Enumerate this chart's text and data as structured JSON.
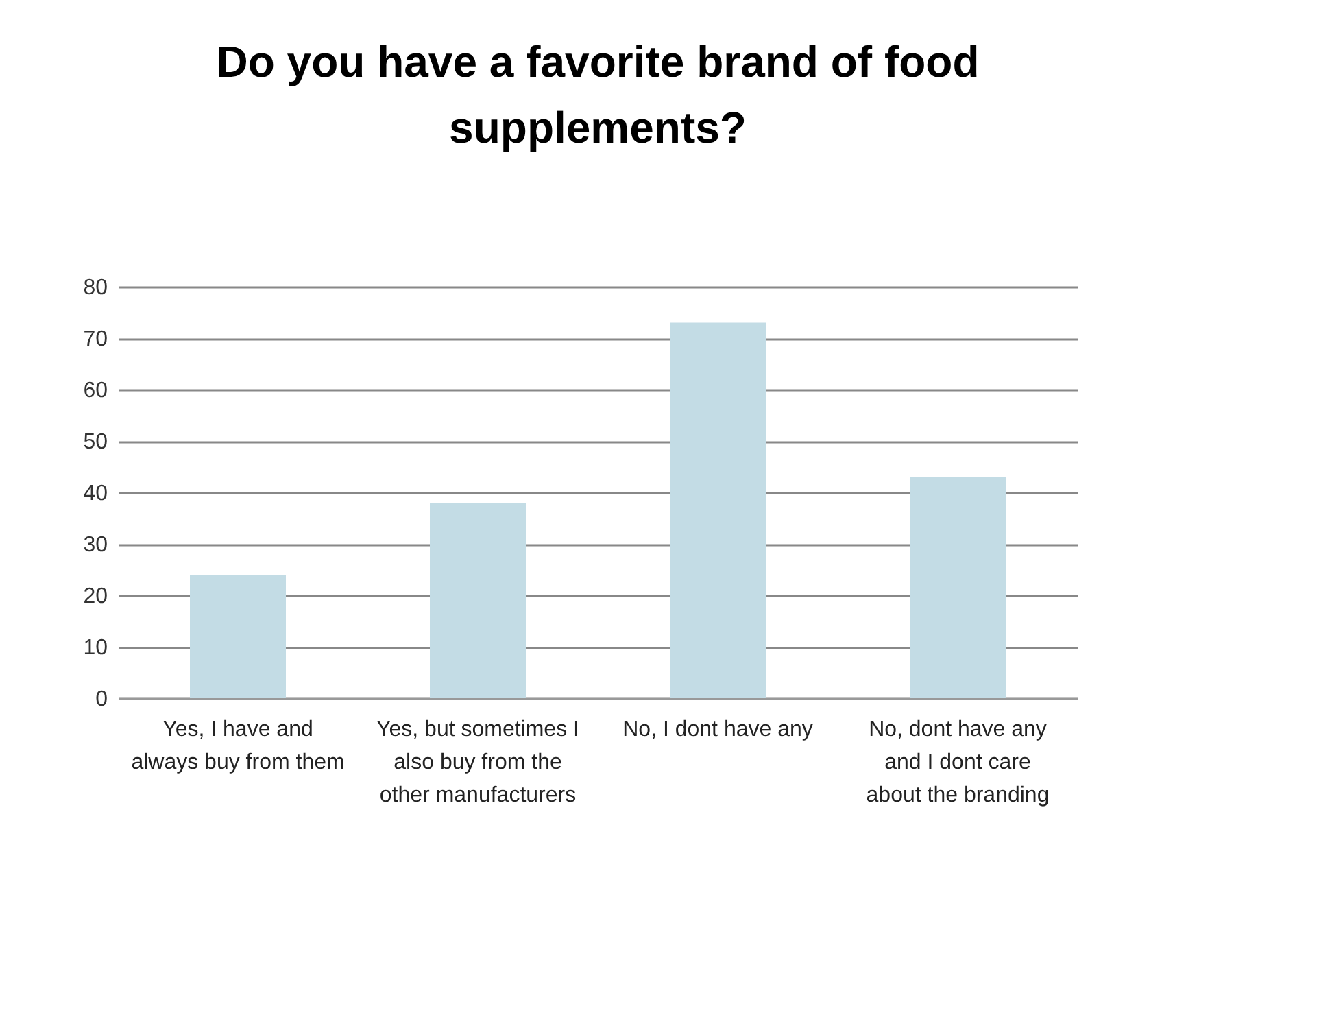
{
  "chart_data": {
    "type": "bar",
    "title": [
      "Do you have a favorite brand of food",
      "supplements?"
    ],
    "categories": [
      "Yes, I have and always buy from them",
      "Yes, but sometimes I also buy from the other manufacturers",
      "No, I dont have any",
      "No, dont have any and I dont care about the branding"
    ],
    "values": [
      24,
      38,
      73,
      43
    ],
    "color": "#c3dce5",
    "ylim": [
      0,
      80
    ],
    "yticks": [
      0,
      10,
      20,
      30,
      40,
      50,
      60,
      70,
      80
    ],
    "grid": "y"
  }
}
